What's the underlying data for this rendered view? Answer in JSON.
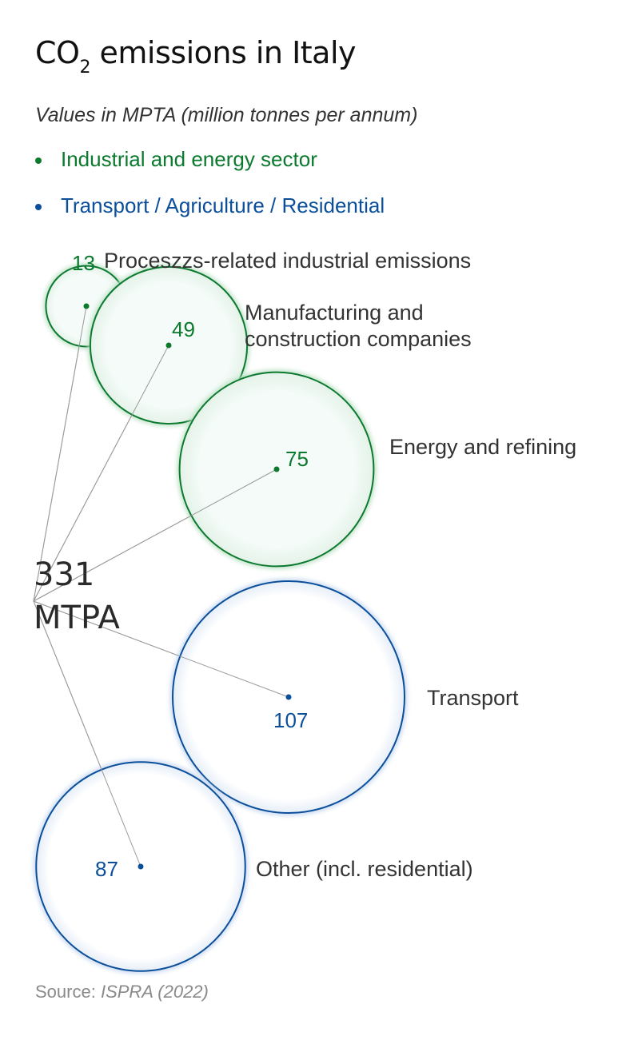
{
  "title": {
    "main": "CO",
    "sub": "2",
    "rest": " emissions in Italy"
  },
  "subtitle": "Values in MPTA (million tonnes per annum)",
  "legend": [
    {
      "label": "Industrial and energy sector",
      "color": "#0b7a2e"
    },
    {
      "label": "Transport / Agriculture / Residential",
      "color": "#0b4f9a"
    }
  ],
  "total": {
    "value": "331",
    "unit": "MTPA"
  },
  "source": {
    "label": "Source:",
    "value": "ISPRA (2022)"
  },
  "chart_data": {
    "type": "bubble",
    "title": "CO2 emissions in Italy",
    "unit": "MPTA",
    "total": 331,
    "series": [
      {
        "name": "Industrial and energy sector",
        "color": "#0b7a2e",
        "items": [
          {
            "label": "Proceszzs-related industrial emissions",
            "value": 13
          },
          {
            "label": "Manufacturing and construction companies",
            "value": 49
          },
          {
            "label": "Energy and refining",
            "value": 75
          }
        ]
      },
      {
        "name": "Transport / Agriculture / Residential",
        "color": "#0b4f9a",
        "items": [
          {
            "label": "Transport",
            "value": 107
          },
          {
            "label": "Other (incl. residential)",
            "value": 87
          }
        ]
      }
    ]
  }
}
